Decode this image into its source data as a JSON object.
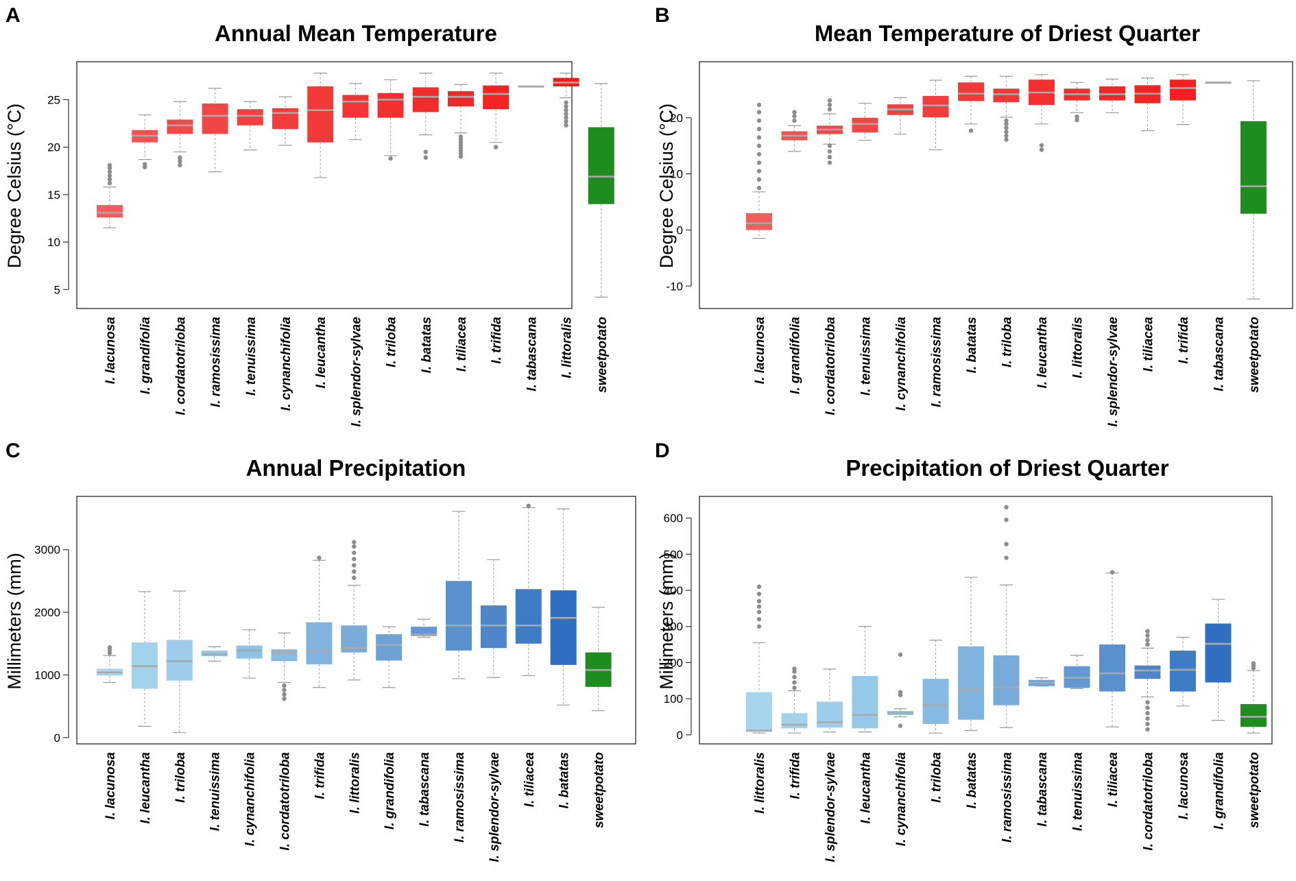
{
  "figure": {
    "panels": [
      {
        "letter": "A",
        "title": "Annual Mean Temperature",
        "ylabel": "Degree Celsius (°C)"
      },
      {
        "letter": "B",
        "title": "Mean Temperature of Driest Quarter",
        "ylabel": "Degree Celsius (°C)"
      },
      {
        "letter": "C",
        "title": "Annual Precipitation",
        "ylabel": "Millimeters (mm)"
      },
      {
        "letter": "D",
        "title": "Precipitation of Driest Quarter",
        "ylabel": "Millimeters (mm)"
      }
    ]
  },
  "chart_data": [
    {
      "type": "boxplot",
      "title": "Annual Mean Temperature",
      "ylabel": "Degree Celsius (°C)",
      "ylim": [
        3,
        29
      ],
      "yticks": [
        5,
        10,
        15,
        20,
        25
      ],
      "categories": [
        "I. lacunosa",
        "I. grandifolia",
        "I. cordatotriloba",
        "I. ramosissima",
        "I. tenuissima",
        "I. cynanchifolia",
        "I. leucantha",
        "I. splendor-sylvae",
        "I. triloba",
        "I. batatas",
        "I. tiliacea",
        "I. trifida",
        "I. tabascana",
        "I. littoralis",
        "sweetpotato"
      ],
      "colors": [
        "#f25d5d",
        "#f25252",
        "#f24848",
        "#f24545",
        "#f24040",
        "#f23d3d",
        "#f23a3a",
        "#f23535",
        "#f23030",
        "#f22c2c",
        "#f22828",
        "#f22424",
        "#f22020",
        "#f21c1c",
        "#1e8c1e"
      ],
      "boxes": [
        {
          "whisker_low": 11.5,
          "q1": 12.6,
          "median": 13.1,
          "q3": 13.9,
          "whisker_high": 15.8,
          "outliers": [
            16.2,
            16.6,
            17.0,
            17.4,
            17.8,
            18.1
          ]
        },
        {
          "whisker_low": 18.7,
          "q1": 20.5,
          "median": 21.2,
          "q3": 21.8,
          "whisker_high": 23.4,
          "outliers": [
            17.9,
            18.2
          ]
        },
        {
          "whisker_low": 19.5,
          "q1": 21.4,
          "median": 22.3,
          "q3": 22.9,
          "whisker_high": 24.8,
          "outliers": [
            18.1,
            18.5,
            18.9
          ]
        },
        {
          "whisker_low": 17.4,
          "q1": 21.4,
          "median": 23.3,
          "q3": 24.6,
          "whisker_high": 26.2,
          "outliers": []
        },
        {
          "whisker_low": 19.7,
          "q1": 22.3,
          "median": 23.3,
          "q3": 24.0,
          "whisker_high": 24.8,
          "outliers": []
        },
        {
          "whisker_low": 20.2,
          "q1": 21.9,
          "median": 23.6,
          "q3": 24.1,
          "whisker_high": 25.3,
          "outliers": []
        },
        {
          "whisker_low": 16.8,
          "q1": 20.5,
          "median": 23.9,
          "q3": 26.4,
          "whisker_high": 27.8,
          "outliers": []
        },
        {
          "whisker_low": 20.8,
          "q1": 23.1,
          "median": 24.8,
          "q3": 25.5,
          "whisker_high": 26.7,
          "outliers": []
        },
        {
          "whisker_low": 19.1,
          "q1": 23.1,
          "median": 25.0,
          "q3": 25.7,
          "whisker_high": 27.1,
          "outliers": [
            18.8
          ]
        },
        {
          "whisker_low": 21.3,
          "q1": 23.7,
          "median": 25.3,
          "q3": 26.3,
          "whisker_high": 27.8,
          "outliers": [
            18.9,
            19.5
          ]
        },
        {
          "whisker_low": 21.5,
          "q1": 24.3,
          "median": 25.3,
          "q3": 25.9,
          "whisker_high": 26.6,
          "outliers": [
            19.0,
            19.3,
            19.6,
            19.9,
            20.2,
            20.5,
            20.8,
            21.1
          ]
        },
        {
          "whisker_low": 20.5,
          "q1": 24.0,
          "median": 25.6,
          "q3": 26.5,
          "whisker_high": 27.8,
          "outliers": [
            20.0
          ]
        },
        {
          "whisker_low": 26.4,
          "q1": 26.4,
          "median": 26.4,
          "q3": 26.4,
          "whisker_high": 26.4,
          "outliers": []
        },
        {
          "whisker_low": 25.2,
          "q1": 26.4,
          "median": 26.8,
          "q3": 27.3,
          "whisker_high": 27.8,
          "outliers": [
            22.3,
            22.7,
            23.1,
            23.5,
            23.9,
            24.3,
            24.7
          ]
        },
        {
          "whisker_low": 4.2,
          "q1": 14.0,
          "median": 16.9,
          "q3": 22.1,
          "whisker_high": 26.7,
          "outliers": []
        }
      ]
    },
    {
      "type": "boxplot",
      "title": "Mean Temperature of Driest Quarter",
      "ylabel": "Degree Celsius (°C)",
      "ylim": [
        -14,
        30
      ],
      "yticks": [
        -10,
        0,
        10,
        20
      ],
      "categories": [
        "I. lacunosa",
        "I. grandifolia",
        "I. cordatotriloba",
        "I. tenuissima",
        "I. cynanchifolia",
        "I. ramosissima",
        "I. batatas",
        "I. triloba",
        "I. leucantha",
        "I. littoralis",
        "I. splendor-sylvae",
        "I. tiliacea",
        "I. trifida",
        "I. tabascana",
        "sweetpotato"
      ],
      "colors": [
        "#f25d5d",
        "#f25252",
        "#f24848",
        "#f24545",
        "#f24040",
        "#f23d3d",
        "#f23a3a",
        "#f23535",
        "#f23030",
        "#f22c2c",
        "#f22828",
        "#f22424",
        "#f22020",
        "#f21c1c",
        "#1e8c1e"
      ],
      "boxes": [
        {
          "whisker_low": -1.5,
          "q1": 0.0,
          "median": 1.2,
          "q3": 3.0,
          "whisker_high": 6.8,
          "outliers": [
            7.5,
            9.0,
            10.5,
            12.0,
            13.5,
            15.0,
            16.5,
            18.0,
            19.5,
            21.0,
            22.3
          ]
        },
        {
          "whisker_low": 14.0,
          "q1": 16.0,
          "median": 16.8,
          "q3": 17.6,
          "whisker_high": 18.6,
          "outliers": [
            19.5,
            20.3,
            21.0
          ]
        },
        {
          "whisker_low": 15.3,
          "q1": 17.1,
          "median": 17.9,
          "q3": 18.6,
          "whisker_high": 20.7,
          "outliers": [
            12.0,
            13.0,
            14.0,
            15.0,
            21.5,
            22.3,
            23.1
          ]
        },
        {
          "whisker_low": 16.0,
          "q1": 17.4,
          "median": 18.9,
          "q3": 20.0,
          "whisker_high": 22.6,
          "outliers": []
        },
        {
          "whisker_low": 17.1,
          "q1": 20.5,
          "median": 21.5,
          "q3": 22.4,
          "whisker_high": 23.6,
          "outliers": []
        },
        {
          "whisker_low": 14.3,
          "q1": 20.1,
          "median": 22.2,
          "q3": 23.9,
          "whisker_high": 26.7,
          "outliers": []
        },
        {
          "whisker_low": 18.9,
          "q1": 23.0,
          "median": 24.3,
          "q3": 26.3,
          "whisker_high": 27.4,
          "outliers": [
            17.7
          ]
        },
        {
          "whisker_low": 20.1,
          "q1": 22.8,
          "median": 24.2,
          "q3": 25.2,
          "whisker_high": 27.4,
          "outliers": [
            16.1,
            16.8,
            17.5,
            18.2,
            18.9,
            19.5
          ]
        },
        {
          "whisker_low": 18.9,
          "q1": 22.3,
          "median": 24.5,
          "q3": 26.8,
          "whisker_high": 27.7,
          "outliers": [
            14.3,
            15.1
          ]
        },
        {
          "whisker_low": 20.9,
          "q1": 23.1,
          "median": 24.2,
          "q3": 25.2,
          "whisker_high": 26.3,
          "outliers": [
            19.6,
            20.2
          ]
        },
        {
          "whisker_low": 20.9,
          "q1": 23.1,
          "median": 24.2,
          "q3": 25.6,
          "whisker_high": 26.9,
          "outliers": []
        },
        {
          "whisker_low": 17.7,
          "q1": 22.6,
          "median": 24.3,
          "q3": 25.8,
          "whisker_high": 27.1,
          "outliers": []
        },
        {
          "whisker_low": 18.8,
          "q1": 23.1,
          "median": 25.3,
          "q3": 26.8,
          "whisker_high": 27.7,
          "outliers": []
        },
        {
          "whisker_low": 26.3,
          "q1": 26.3,
          "median": 26.3,
          "q3": 26.3,
          "whisker_high": 26.3,
          "outliers": []
        },
        {
          "whisker_low": -12.3,
          "q1": 2.9,
          "median": 7.8,
          "q3": 19.4,
          "whisker_high": 26.6,
          "outliers": []
        }
      ]
    },
    {
      "type": "boxplot",
      "title": "Annual Precipitation",
      "ylabel": "Millimeters (mm)",
      "ylim": [
        -100,
        3850
      ],
      "yticks": [
        0,
        1000,
        2000,
        3000
      ],
      "categories": [
        "I. lacunosa",
        "I. leucantha",
        "I. triloba",
        "I. tenuissima",
        "I. cynanchifolia",
        "I. cordatotriloba",
        "I. trifida",
        "I. littoralis",
        "I. grandifolia",
        "I. tabascana",
        "I. ramosissima",
        "I. splendor-sylvae",
        "I. tiliacea",
        "I. batatas",
        "sweetpotato"
      ],
      "colors": [
        "#a6d6ee",
        "#a3d2ec",
        "#9dcdea",
        "#96c8e8",
        "#8fc2e5",
        "#88bbe2",
        "#80b3de",
        "#78aada",
        "#6ea1d6",
        "#6398d2",
        "#5a90cd",
        "#4e86c9",
        "#3f7cc6",
        "#2f6fc2",
        "#1e8c1e"
      ],
      "boxes": [
        {
          "whisker_low": 880,
          "q1": 990,
          "median": 1040,
          "q3": 1100,
          "whisker_high": 1310,
          "outliers": [
            1350,
            1400,
            1440
          ]
        },
        {
          "whisker_low": 180,
          "q1": 780,
          "median": 1140,
          "q3": 1520,
          "whisker_high": 2330,
          "outliers": []
        },
        {
          "whisker_low": 80,
          "q1": 910,
          "median": 1220,
          "q3": 1560,
          "whisker_high": 2340,
          "outliers": []
        },
        {
          "whisker_low": 1220,
          "q1": 1300,
          "median": 1330,
          "q3": 1390,
          "whisker_high": 1450,
          "outliers": []
        },
        {
          "whisker_low": 950,
          "q1": 1260,
          "median": 1390,
          "q3": 1470,
          "whisker_high": 1720,
          "outliers": []
        },
        {
          "whisker_low": 880,
          "q1": 1220,
          "median": 1360,
          "q3": 1410,
          "whisker_high": 1670,
          "outliers": [
            620,
            690,
            760,
            830
          ]
        },
        {
          "whisker_low": 800,
          "q1": 1170,
          "median": 1390,
          "q3": 1840,
          "whisker_high": 2830,
          "outliers": [
            2870
          ]
        },
        {
          "whisker_low": 920,
          "q1": 1360,
          "median": 1430,
          "q3": 1790,
          "whisker_high": 2430,
          "outliers": [
            2550,
            2650,
            2750,
            2850,
            2950,
            3050,
            3120
          ]
        },
        {
          "whisker_low": 800,
          "q1": 1230,
          "median": 1480,
          "q3": 1650,
          "whisker_high": 1770,
          "outliers": []
        },
        {
          "whisker_low": 1600,
          "q1": 1620,
          "median": 1640,
          "q3": 1770,
          "whisker_high": 1890,
          "outliers": []
        },
        {
          "whisker_low": 940,
          "q1": 1390,
          "median": 1790,
          "q3": 2500,
          "whisker_high": 3610,
          "outliers": []
        },
        {
          "whisker_low": 960,
          "q1": 1430,
          "median": 1790,
          "q3": 2110,
          "whisker_high": 2840,
          "outliers": []
        },
        {
          "whisker_low": 990,
          "q1": 1500,
          "median": 1790,
          "q3": 2370,
          "whisker_high": 3670,
          "outliers": [
            3700
          ]
        },
        {
          "whisker_low": 520,
          "q1": 1160,
          "median": 1910,
          "q3": 2350,
          "whisker_high": 3650,
          "outliers": []
        },
        {
          "whisker_low": 430,
          "q1": 810,
          "median": 1080,
          "q3": 1360,
          "whisker_high": 2080,
          "outliers": []
        }
      ]
    },
    {
      "type": "boxplot",
      "title": "Precipitation of Driest Quarter",
      "ylabel": "Millimeters (mm)",
      "ylim": [
        -25,
        660
      ],
      "yticks": [
        0,
        100,
        200,
        300,
        400,
        500,
        600
      ],
      "categories": [
        "I. littoralis",
        "I. trifida",
        "I. splendor-sylvae",
        "I. leucantha",
        "I. cynanchifolia",
        "I. triloba",
        "I. batatas",
        "I. ramosissima",
        "I. tabascana",
        "I. tenuissima",
        "I. tiliacea",
        "I. cordatotriloba",
        "I. lacunosa",
        "I. grandifolia",
        "sweetpotato"
      ],
      "colors": [
        "#a6d6ee",
        "#a3d2ec",
        "#9dcdea",
        "#96c8e8",
        "#8fc2e5",
        "#88bbe2",
        "#80b3de",
        "#78aada",
        "#6ea1d6",
        "#6398d2",
        "#5a90cd",
        "#4e86c9",
        "#3f7cc6",
        "#2f6fc2",
        "#1e8c1e"
      ],
      "boxes": [
        {
          "whisker_low": 5,
          "q1": 8,
          "median": 12,
          "q3": 118,
          "whisker_high": 255,
          "outliers": [
            300,
            320,
            340,
            355,
            370,
            390,
            410
          ]
        },
        {
          "whisker_low": 5,
          "q1": 18,
          "median": 28,
          "q3": 60,
          "whisker_high": 122,
          "outliers": [
            130,
            145,
            160,
            175,
            183
          ]
        },
        {
          "whisker_low": 8,
          "q1": 20,
          "median": 35,
          "q3": 92,
          "whisker_high": 182,
          "outliers": []
        },
        {
          "whisker_low": 8,
          "q1": 18,
          "median": 55,
          "q3": 163,
          "whisker_high": 300,
          "outliers": []
        },
        {
          "whisker_low": 50,
          "q1": 55,
          "median": 60,
          "q3": 66,
          "whisker_high": 72,
          "outliers": [
            25,
            110,
            118,
            222
          ]
        },
        {
          "whisker_low": 5,
          "q1": 30,
          "median": 82,
          "q3": 155,
          "whisker_high": 262,
          "outliers": []
        },
        {
          "whisker_low": 12,
          "q1": 42,
          "median": 125,
          "q3": 245,
          "whisker_high": 436,
          "outliers": []
        },
        {
          "whisker_low": 20,
          "q1": 82,
          "median": 132,
          "q3": 220,
          "whisker_high": 415,
          "outliers": [
            490,
            528,
            595,
            630
          ]
        },
        {
          "whisker_low": 135,
          "q1": 135,
          "median": 144,
          "q3": 152,
          "whisker_high": 158,
          "outliers": []
        },
        {
          "whisker_low": 128,
          "q1": 130,
          "median": 158,
          "q3": 190,
          "whisker_high": 220,
          "outliers": []
        },
        {
          "whisker_low": 22,
          "q1": 120,
          "median": 170,
          "q3": 250,
          "whisker_high": 448,
          "outliers": [
            450
          ]
        },
        {
          "whisker_low": 105,
          "q1": 155,
          "median": 178,
          "q3": 192,
          "whisker_high": 240,
          "outliers": [
            15,
            30,
            45,
            60,
            75,
            90,
            250,
            262,
            275,
            287
          ]
        },
        {
          "whisker_low": 80,
          "q1": 120,
          "median": 180,
          "q3": 233,
          "whisker_high": 270,
          "outliers": []
        },
        {
          "whisker_low": 40,
          "q1": 145,
          "median": 252,
          "q3": 308,
          "whisker_high": 375,
          "outliers": []
        },
        {
          "whisker_low": 5,
          "q1": 22,
          "median": 50,
          "q3": 85,
          "whisker_high": 178,
          "outliers": [
            185,
            192,
            198
          ]
        }
      ]
    }
  ]
}
